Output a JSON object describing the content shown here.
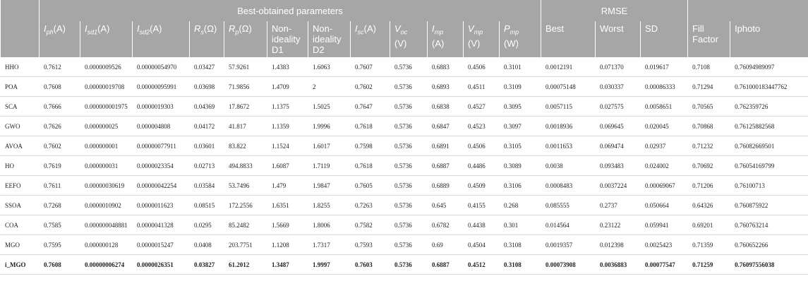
{
  "header_groups": {
    "params": "Best-obtained parameters",
    "rmse": "RMSE"
  },
  "columns": {
    "iph": {
      "main": "I",
      "sub": "ph",
      "unit": "(A)"
    },
    "isd1": {
      "main": "I",
      "sub": "sd1",
      "unit": "(A)"
    },
    "isd2": {
      "main": "I",
      "sub": "sd2",
      "unit": "(A)"
    },
    "rs": {
      "main": "R",
      "sub": "s",
      "unit": "(Ω)"
    },
    "rp": {
      "main": "R",
      "sub": "p",
      "unit": "(Ω)"
    },
    "d1": "Non-ideality D1",
    "d2": "Non-ideality D2",
    "isc": {
      "main": "I",
      "sub": "sc",
      "unit": "(A)"
    },
    "voc": {
      "main": "V",
      "sub": "oc",
      "unit": "(V)"
    },
    "imp": {
      "main": "I",
      "sub": "mp",
      "unit": "(A)"
    },
    "vmp": {
      "main": "V",
      "sub": "mp",
      "unit": "(V)"
    },
    "pmp": {
      "main": "P",
      "sub": "mp",
      "unit": "(W)"
    },
    "best": "Best",
    "worst": "Worst",
    "sd": "SD",
    "ff": "Fill Factor",
    "iphoto": "Iphoto"
  },
  "rows": [
    [
      "HHO",
      "0.7612",
      "0.0000009526",
      "0.00000054970",
      "0.03427",
      "57.9261",
      "1.4383",
      "1.6063",
      "0.7607",
      "0.5736",
      "0.6883",
      "0.4506",
      "0.3101",
      "0.0012191",
      "0.071370",
      "0.019617",
      "0.7108",
      "0.76094989097"
    ],
    [
      "POA",
      "0.7608",
      "0.00000019708",
      "0.00000095991",
      "0.03698",
      "71.9856",
      "1.4709",
      "2",
      "0.7602",
      "0.5736",
      "0.6893",
      "0.4511",
      "0.3109",
      "0.00075148",
      "0.030337",
      "0.00086333",
      "0.71294",
      "0.761000183447762"
    ],
    [
      "SCA",
      "0.7666",
      "0.000000001975",
      "0.0000019303",
      "0.04369",
      "17.8672",
      "1.1375",
      "1.5025",
      "0.7647",
      "0.5736",
      "0.6838",
      "0.4527",
      "0.3095",
      "0.0057115",
      "0.027575",
      "0.0058651",
      "0.70565",
      "0.762359726"
    ],
    [
      "GWO",
      "0.7626",
      "0.000000025",
      "0.000004808",
      "0.04172",
      "41.817",
      "1.1359",
      "1.9996",
      "0.7618",
      "0.5736",
      "0.6847",
      "0.4523",
      "0.3097",
      "0.0018936",
      "0.069645",
      "0.020045",
      "0.70868",
      "0.76125882568"
    ],
    [
      "AVOA",
      "0.7602",
      "0.000000001",
      "0.00000077911",
      "0.03601",
      "83.822",
      "1.1524",
      "1.6017",
      "0.7598",
      "0.5736",
      "0.6891",
      "0.4506",
      "0.3105",
      "0.0011653",
      "0.069474",
      "0.02937",
      "0.71232",
      "0.76082669501"
    ],
    [
      "HO",
      "0.7619",
      "0.000000031",
      "0.0000023354",
      "0.02713",
      "494.8833",
      "1.6087",
      "1.7119",
      "0.7618",
      "0.5736",
      "0.6887",
      "0.4486",
      "0.3089",
      "0.0038",
      "0.093483",
      "0.024002",
      "0.70692",
      "0.76054169799"
    ],
    [
      "EEFO",
      "0.7611",
      "0.00000030619",
      "0.00000042254",
      "0.03584",
      "53.7496",
      "1.479",
      "1.9847",
      "0.7605",
      "0.5736",
      "0.6889",
      "0.4509",
      "0.3106",
      "0.0008483",
      "0.0037224",
      "0.00069067",
      "0.71206",
      "0.76100713"
    ],
    [
      "SSOA",
      "0.7268",
      "0.0000010902",
      "0.0000011623",
      "0.08515",
      "172.2556",
      "1.6351",
      "1.8255",
      "0.7263",
      "0.5736",
      "0.645",
      "0.4155",
      "0.268",
      "0.085555",
      "0.2737",
      "0.050664",
      "0.64326",
      "0.760875922"
    ],
    [
      "COA",
      "0.7585",
      "0.000000048881",
      "0.0000041328",
      "0.0295",
      "85.2482",
      "1.5669",
      "1.8006",
      "0.7582",
      "0.5736",
      "0.6782",
      "0.4438",
      "0.301",
      "0.014564",
      "0.23122",
      "0.059941",
      "0.69201",
      "0.760763214"
    ],
    [
      "MGO",
      "0.7595",
      "0.000000128",
      "0.0000015247",
      "0.0408",
      "203.7751",
      "1.1208",
      "1.7317",
      "0.7593",
      "0.5736",
      "0.69",
      "0.4504",
      "0.3108",
      "0.0019357",
      "0.012398",
      "0.0025423",
      "0.71359",
      "0.760652266"
    ],
    [
      "i_MGO",
      "0.7608",
      "0.00000006274",
      "0.0000026351",
      "0.03827",
      "61.2012",
      "1.3487",
      "1.9997",
      "0.7603",
      "0.5736",
      "0.6887",
      "0.4512",
      "0.3108",
      "0.00073908",
      "0.0036883",
      "0.00077547",
      "0.71259",
      "0.76097556038"
    ]
  ]
}
